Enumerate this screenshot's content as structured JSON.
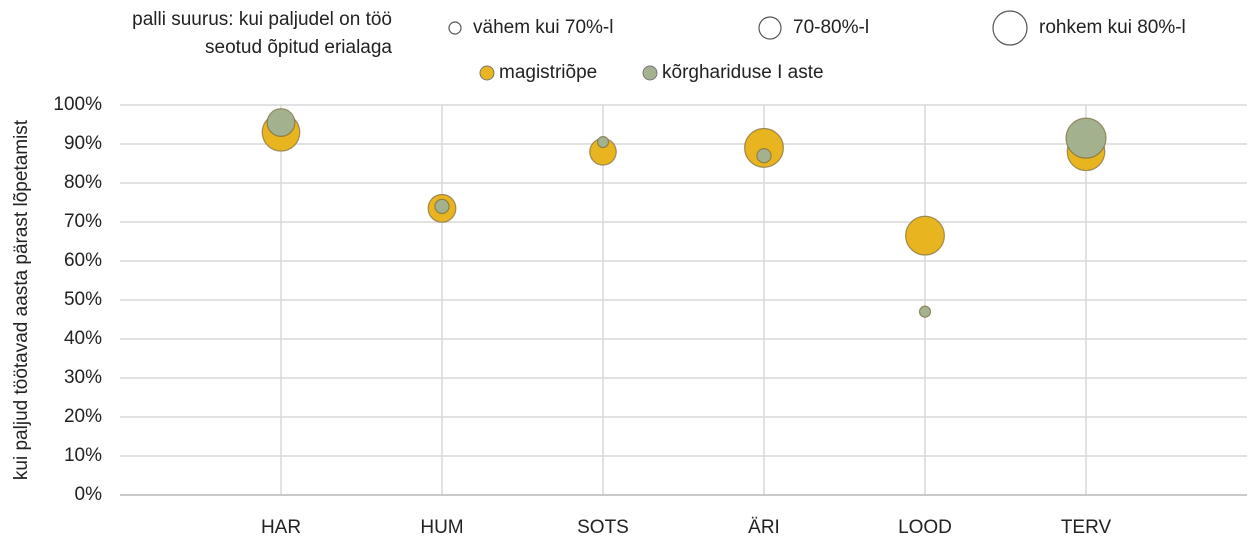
{
  "chart_data": {
    "type": "bubble",
    "size_legend_title": [
      "palli suurus: kui paljudel on töö",
      "seotud õpitud erialaga"
    ],
    "size_legend": [
      "vähem kui 70%-l",
      "70-80%-l",
      "rohkem kui 80%-l"
    ],
    "ylabel": "kui paljud töötavad aasta pärast lõpetamist",
    "categories": [
      "HAR",
      "HUM",
      "SOTS",
      "ÄRI",
      "LOOD",
      "TERV"
    ],
    "series": [
      {
        "name": "magistriõpe",
        "color": "#e8b521",
        "values": [
          93,
          73.5,
          88,
          89,
          66.5,
          88
        ],
        "sizes": [
          88,
          72,
          70,
          90,
          90,
          88
        ]
      },
      {
        "name": "kõrghariduse I aste",
        "color": "#a3b18f",
        "values": [
          95.5,
          74,
          90.5,
          87,
          47,
          91.5
        ],
        "sizes": [
          72,
          50,
          45,
          50,
          45,
          92
        ]
      }
    ],
    "ylim": [
      0,
      100
    ],
    "yticks": [
      {
        "value": 0,
        "label": "0%"
      },
      {
        "value": 10,
        "label": "10%"
      },
      {
        "value": 20,
        "label": "20%"
      },
      {
        "value": 30,
        "label": "30%"
      },
      {
        "value": 40,
        "label": "40%"
      },
      {
        "value": 50,
        "label": "50%"
      },
      {
        "value": 60,
        "label": "60%"
      },
      {
        "value": 70,
        "label": "70%"
      },
      {
        "value": 80,
        "label": "80%"
      },
      {
        "value": 90,
        "label": "90%"
      },
      {
        "value": 100,
        "label": "100%"
      }
    ],
    "grid": true
  }
}
